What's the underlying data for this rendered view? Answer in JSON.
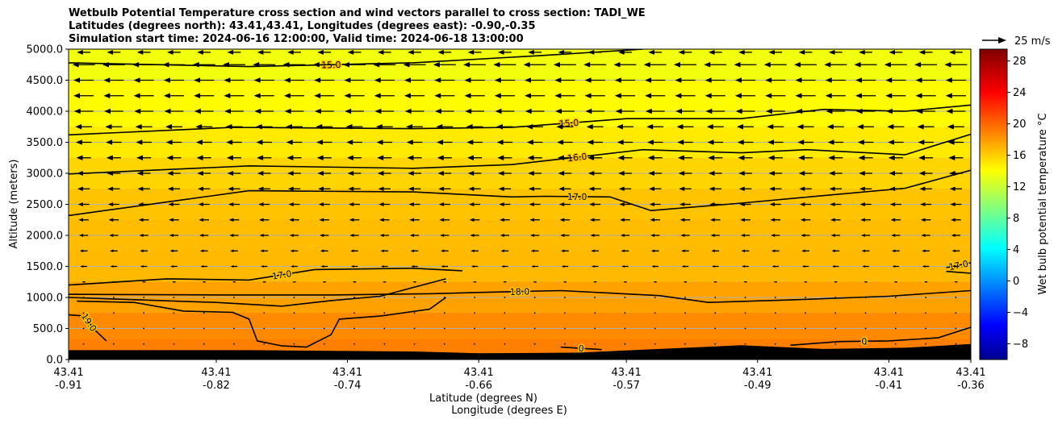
{
  "title_lines": [
    "Wetbulb Potential Temperature cross section and wind vectors parallel to cross section: TADI_WE",
    "Latitudes (degrees north): 43.41,43.41, Longitudes (degrees east): -0.90,-0.35",
    "Simulation start time: 2024-06-16 12:00:00, Valid time: 2024-06-18 13:00:00"
  ],
  "quiver_key_label": "25 m/s",
  "colorbar": {
    "label": "Wet bulb potential temperature $^\\circ$C",
    "label_display": "Wet bulb potential temperature °C",
    "ticks": [
      "−8",
      "−4",
      "0",
      "4",
      "8",
      "12",
      "16",
      "20",
      "24",
      "28"
    ],
    "tick_values": [
      -8,
      -4,
      0,
      4,
      8,
      12,
      16,
      20,
      24,
      28
    ],
    "range": [
      -10,
      29.5
    ],
    "colormap": "jet"
  },
  "chart_data": {
    "type": "heatmap",
    "xlabel": "Latitude (degrees N)",
    "xlabel2": "Longitude (degrees E)",
    "ylabel": "Altitude (meters)",
    "ylim": [
      0,
      5000
    ],
    "y_ticks": [
      "0.0",
      "500.0",
      "1000.0",
      "1500.0",
      "2000.0",
      "2500.0",
      "3000.0",
      "3500.0",
      "4000.0",
      "4500.0",
      "5000.0"
    ],
    "y_tick_values": [
      0,
      500,
      1000,
      1500,
      2000,
      2500,
      3000,
      3500,
      4000,
      4500,
      5000
    ],
    "x_ticks": [
      {
        "lat": "43.41",
        "lon": "-0.91"
      },
      {
        "lat": "43.41",
        "lon": "-0.82"
      },
      {
        "lat": "43.41",
        "lon": "-0.74"
      },
      {
        "lat": "43.41",
        "lon": "-0.66"
      },
      {
        "lat": "43.41",
        "lon": "-0.57"
      },
      {
        "lat": "43.41",
        "lon": "-0.49"
      },
      {
        "lat": "43.41",
        "lon": "-0.41"
      },
      {
        "lat": "43.41",
        "lon": "-0.36"
      }
    ],
    "x_tick_lon_values": [
      -0.91,
      -0.82,
      -0.74,
      -0.66,
      -0.57,
      -0.49,
      -0.41,
      -0.36
    ],
    "grid": "horizontal",
    "field_levels": [
      {
        "altitude": 5000,
        "value": 14.2
      },
      {
        "altitude": 4000,
        "value": 14.8
      },
      {
        "altitude": 3500,
        "value": 15.5
      },
      {
        "altitude": 3000,
        "value": 16.3
      },
      {
        "altitude": 2500,
        "value": 17.0
      },
      {
        "altitude": 2000,
        "value": 17.3
      },
      {
        "altitude": 1500,
        "value": 17.4
      },
      {
        "altitude": 1000,
        "value": 18.3
      },
      {
        "altitude": 500,
        "value": 19.2
      },
      {
        "altitude": 150,
        "value": 19.6
      }
    ],
    "contours": [
      {
        "label": "15.0",
        "points": [
          [
            -0.91,
            4780
          ],
          [
            -0.8,
            4720
          ],
          [
            -0.7,
            4780
          ],
          [
            -0.62,
            4900
          ],
          [
            -0.56,
            5000
          ]
        ]
      },
      {
        "label": "15.0",
        "points": [
          [
            -0.91,
            3620
          ],
          [
            -0.81,
            3740
          ],
          [
            -0.7,
            3720
          ],
          [
            -0.64,
            3740
          ],
          [
            -0.57,
            3880
          ],
          [
            -0.5,
            3880
          ],
          [
            -0.45,
            4030
          ],
          [
            -0.4,
            4000
          ],
          [
            -0.36,
            4100
          ]
        ]
      },
      {
        "label": "16.0",
        "points": [
          [
            -0.91,
            2990
          ],
          [
            -0.8,
            3120
          ],
          [
            -0.7,
            3080
          ],
          [
            -0.64,
            3140
          ],
          [
            -0.56,
            3380
          ],
          [
            -0.5,
            3330
          ],
          [
            -0.46,
            3380
          ],
          [
            -0.4,
            3300
          ],
          [
            -0.36,
            3630
          ]
        ]
      },
      {
        "label": "17.0",
        "points": [
          [
            -0.91,
            2320
          ],
          [
            -0.8,
            2720
          ],
          [
            -0.7,
            2700
          ],
          [
            -0.64,
            2620
          ],
          [
            -0.62,
            2630
          ],
          [
            -0.58,
            2620
          ],
          [
            -0.555,
            2400
          ],
          [
            -0.5,
            2520
          ],
          [
            -0.45,
            2640
          ],
          [
            -0.4,
            2760
          ],
          [
            -0.36,
            3050
          ]
        ]
      },
      {
        "label": "17.0",
        "points": [
          [
            -0.91,
            1200
          ],
          [
            -0.85,
            1300
          ],
          [
            -0.8,
            1280
          ],
          [
            -0.76,
            1450
          ],
          [
            -0.7,
            1470
          ],
          [
            -0.67,
            1430
          ]
        ]
      },
      {
        "label": "",
        "points": [
          [
            -0.91,
            1000
          ],
          [
            -0.82,
            920
          ],
          [
            -0.78,
            860
          ],
          [
            -0.75,
            950
          ],
          [
            -0.72,
            1020
          ],
          [
            -0.68,
            1300
          ]
        ]
      },
      {
        "label": "18.0",
        "points": [
          [
            -0.91,
            1050
          ],
          [
            -0.82,
            1040
          ],
          [
            -0.75,
            1040
          ],
          [
            -0.69,
            1060
          ],
          [
            -0.66,
            1080
          ],
          [
            -0.61,
            1110
          ],
          [
            -0.55,
            1030
          ],
          [
            -0.52,
            920
          ],
          [
            -0.47,
            960
          ],
          [
            -0.41,
            1020
          ],
          [
            -0.36,
            1110
          ]
        ]
      },
      {
        "label": "19.0",
        "points": [
          [
            -0.91,
            720
          ],
          [
            -0.9,
            700
          ],
          [
            -0.895,
            500
          ],
          [
            -0.887,
            300
          ]
        ]
      },
      {
        "label": "",
        "points": [
          [
            -0.905,
            940
          ],
          [
            -0.87,
            920
          ],
          [
            -0.84,
            780
          ],
          [
            -0.81,
            760
          ],
          [
            -0.8,
            650
          ],
          [
            -0.795,
            300
          ],
          [
            -0.78,
            220
          ],
          [
            -0.765,
            200
          ],
          [
            -0.75,
            400
          ],
          [
            -0.745,
            650
          ],
          [
            -0.72,
            700
          ],
          [
            -0.69,
            810
          ],
          [
            -0.68,
            1000
          ]
        ]
      },
      {
        "label": "0",
        "points": [
          [
            -0.61,
            200
          ],
          [
            -0.585,
            160
          ]
        ]
      },
      {
        "label": "0",
        "points": [
          [
            -0.47,
            230
          ],
          [
            -0.44,
            290
          ],
          [
            -0.41,
            300
          ],
          [
            -0.38,
            350
          ],
          [
            -0.36,
            520
          ]
        ]
      },
      {
        "label": "17.0",
        "points": [
          [
            -0.375,
            1480
          ],
          [
            -0.36,
            1560
          ]
        ]
      },
      {
        "label": "",
        "points": [
          [
            -0.375,
            1420
          ],
          [
            -0.36,
            1390
          ]
        ]
      }
    ],
    "terrain": [
      [
        -0.91,
        150
      ],
      [
        -0.8,
        150
      ],
      [
        -0.7,
        130
      ],
      [
        -0.66,
        100
      ],
      [
        -0.6,
        110
      ],
      [
        -0.55,
        170
      ],
      [
        -0.5,
        230
      ],
      [
        -0.45,
        170
      ],
      [
        -0.4,
        190
      ],
      [
        -0.36,
        250
      ]
    ],
    "wind_rows": [
      {
        "altitude": 4950,
        "u": -0.6
      },
      {
        "altitude": 4750,
        "u": -1.0
      },
      {
        "altitude": 4500,
        "u": -0.9
      },
      {
        "altitude": 4250,
        "u": -0.9
      },
      {
        "altitude": 4000,
        "u": -0.85
      },
      {
        "altitude": 3750,
        "u": -0.75
      },
      {
        "altitude": 3500,
        "u": -0.7
      },
      {
        "altitude": 3250,
        "u": -0.65
      },
      {
        "altitude": 3000,
        "u": -0.6
      },
      {
        "altitude": 2750,
        "u": -0.55
      },
      {
        "altitude": 2500,
        "u": -0.5
      },
      {
        "altitude": 2250,
        "u": -0.45
      },
      {
        "altitude": 2000,
        "u": -0.4
      },
      {
        "altitude": 1750,
        "u": -0.35
      },
      {
        "altitude": 1500,
        "u": -0.3
      },
      {
        "altitude": 1250,
        "u": -0.15
      },
      {
        "altitude": 1000,
        "u": -0.08
      },
      {
        "altitude": 750,
        "u": -0.04
      },
      {
        "altitude": 500,
        "u": -0.03
      },
      {
        "altitude": 250,
        "u": -0.02
      }
    ],
    "wind_columns": 30
  }
}
